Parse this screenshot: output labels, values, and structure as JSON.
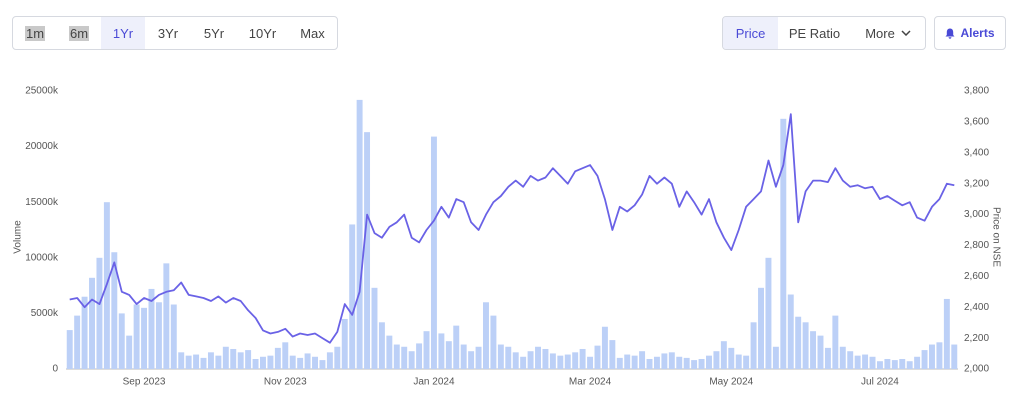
{
  "toolbar": {
    "ranges": [
      "1m",
      "6m",
      "1Yr",
      "3Yr",
      "5Yr",
      "10Yr",
      "Max"
    ],
    "views": [
      "Price",
      "PE Ratio",
      "More"
    ],
    "alerts": "Alerts"
  },
  "chart_data": {
    "type": "combo",
    "y_label": "Volume",
    "y2_label": "Price on NSE",
    "categories": [
      null,
      null,
      null,
      null,
      null,
      null,
      null,
      null,
      null,
      null,
      "Sep 2023",
      null,
      null,
      null,
      null,
      null,
      null,
      null,
      null,
      null,
      null,
      null,
      null,
      null,
      null,
      null,
      null,
      null,
      null,
      "Nov 2023",
      null,
      null,
      null,
      null,
      null,
      null,
      null,
      null,
      null,
      null,
      null,
      null,
      null,
      null,
      null,
      null,
      null,
      null,
      null,
      "Jan 2024",
      null,
      null,
      null,
      null,
      null,
      null,
      null,
      null,
      null,
      null,
      null,
      null,
      null,
      null,
      null,
      null,
      null,
      null,
      null,
      null,
      "Mar 2024",
      null,
      null,
      null,
      null,
      null,
      null,
      null,
      null,
      null,
      null,
      null,
      null,
      null,
      null,
      null,
      null,
      null,
      null,
      "May 2024",
      null,
      null,
      null,
      null,
      null,
      null,
      null,
      null,
      null,
      null,
      null,
      null,
      null,
      null,
      null,
      null,
      null,
      null,
      null,
      "Jul 2024",
      null,
      null,
      null,
      null,
      null,
      null,
      null,
      null,
      null,
      null
    ],
    "series": [
      {
        "type": "bar",
        "color": "#bcd0f7",
        "values": [
          3500,
          4800,
          6500,
          8200,
          10000,
          15000,
          10500,
          5000,
          3000,
          5800,
          5500,
          7200,
          6000,
          9500,
          5800,
          1500,
          1200,
          1300,
          1000,
          1500,
          1200,
          2000,
          1800,
          1500,
          1700,
          900,
          1100,
          1200,
          1900,
          2400,
          1200,
          1000,
          1400,
          1100,
          800,
          1500,
          2000,
          4500,
          13000,
          24200,
          21300,
          7300,
          4200,
          3000,
          2200,
          2000,
          1600,
          2300,
          3400,
          20900,
          3200,
          2500,
          3900,
          2200,
          1600,
          2000,
          6000,
          4800,
          2200,
          2000,
          1500,
          1100,
          1600,
          2000,
          1800,
          1400,
          1200,
          1300,
          1500,
          1800,
          1100,
          2100,
          3800,
          2600,
          1000,
          1300,
          1200,
          1600,
          900,
          1100,
          1400,
          1500,
          1100,
          1000,
          800,
          900,
          1200,
          1600,
          2500,
          1900,
          1300,
          1200,
          4200,
          7300,
          10000,
          2000,
          22500,
          6700,
          4700,
          4200,
          3400,
          3000,
          1900,
          4800,
          2000,
          1600,
          1200,
          1300,
          1100,
          700,
          900,
          800,
          900,
          700,
          1100,
          1700,
          2200,
          2400,
          6300,
          2200
        ]
      },
      {
        "type": "line",
        "axis": "y2",
        "color": "#6a62e6",
        "values": [
          2450,
          2460,
          2400,
          2450,
          2420,
          2550,
          2690,
          2500,
          2480,
          2420,
          2460,
          2440,
          2480,
          2500,
          2510,
          2560,
          2480,
          2470,
          2460,
          2440,
          2470,
          2430,
          2460,
          2440,
          2380,
          2330,
          2250,
          2230,
          2240,
          2260,
          2210,
          2230,
          2220,
          2230,
          2200,
          2170,
          2240,
          2420,
          2350,
          2500,
          3000,
          2880,
          2850,
          2920,
          2950,
          3000,
          2850,
          2820,
          2900,
          2960,
          3050,
          2980,
          3100,
          3080,
          2950,
          2900,
          3000,
          3080,
          3120,
          3180,
          3220,
          3180,
          3250,
          3220,
          3240,
          3300,
          3250,
          3200,
          3280,
          3300,
          3320,
          3250,
          3100,
          2900,
          3050,
          3020,
          3060,
          3130,
          3250,
          3200,
          3240,
          3200,
          3050,
          3150,
          3080,
          3000,
          3100,
          2950,
          2850,
          2770,
          2900,
          3050,
          3100,
          3150,
          3350,
          3180,
          3320,
          3650,
          2950,
          3150,
          3220,
          3220,
          3210,
          3300,
          3220,
          3180,
          3190,
          3170,
          3180,
          3100,
          3120,
          3090,
          3060,
          3080,
          2980,
          2960,
          3050,
          3100,
          3200,
          3190
        ]
      }
    ],
    "ylim": [
      0,
      25000
    ],
    "yticks": [
      0,
      {
        "value": 5000,
        "label": "5000k"
      },
      {
        "value": 10000,
        "label": "10000k"
      },
      {
        "value": 15000,
        "label": "15000k"
      },
      {
        "value": 20000,
        "label": "20000k"
      },
      {
        "value": 25000,
        "label": "25000k"
      }
    ],
    "y2lim": [
      2000,
      3800
    ],
    "y2ticks": [
      {
        "value": 2000,
        "label": "2,000"
      },
      {
        "value": 2200,
        "label": "2,200"
      },
      {
        "value": 2400,
        "label": "2,400"
      },
      {
        "value": 2600,
        "label": "2,600"
      },
      {
        "value": 2800,
        "label": "2,800"
      },
      {
        "value": 3000,
        "label": "3,000"
      },
      {
        "value": 3200,
        "label": "3,200"
      },
      {
        "value": 3400,
        "label": "3,400"
      },
      {
        "value": 3600,
        "label": "3,600"
      },
      {
        "value": 3800,
        "label": "3,800"
      }
    ],
    "grid": false
  }
}
